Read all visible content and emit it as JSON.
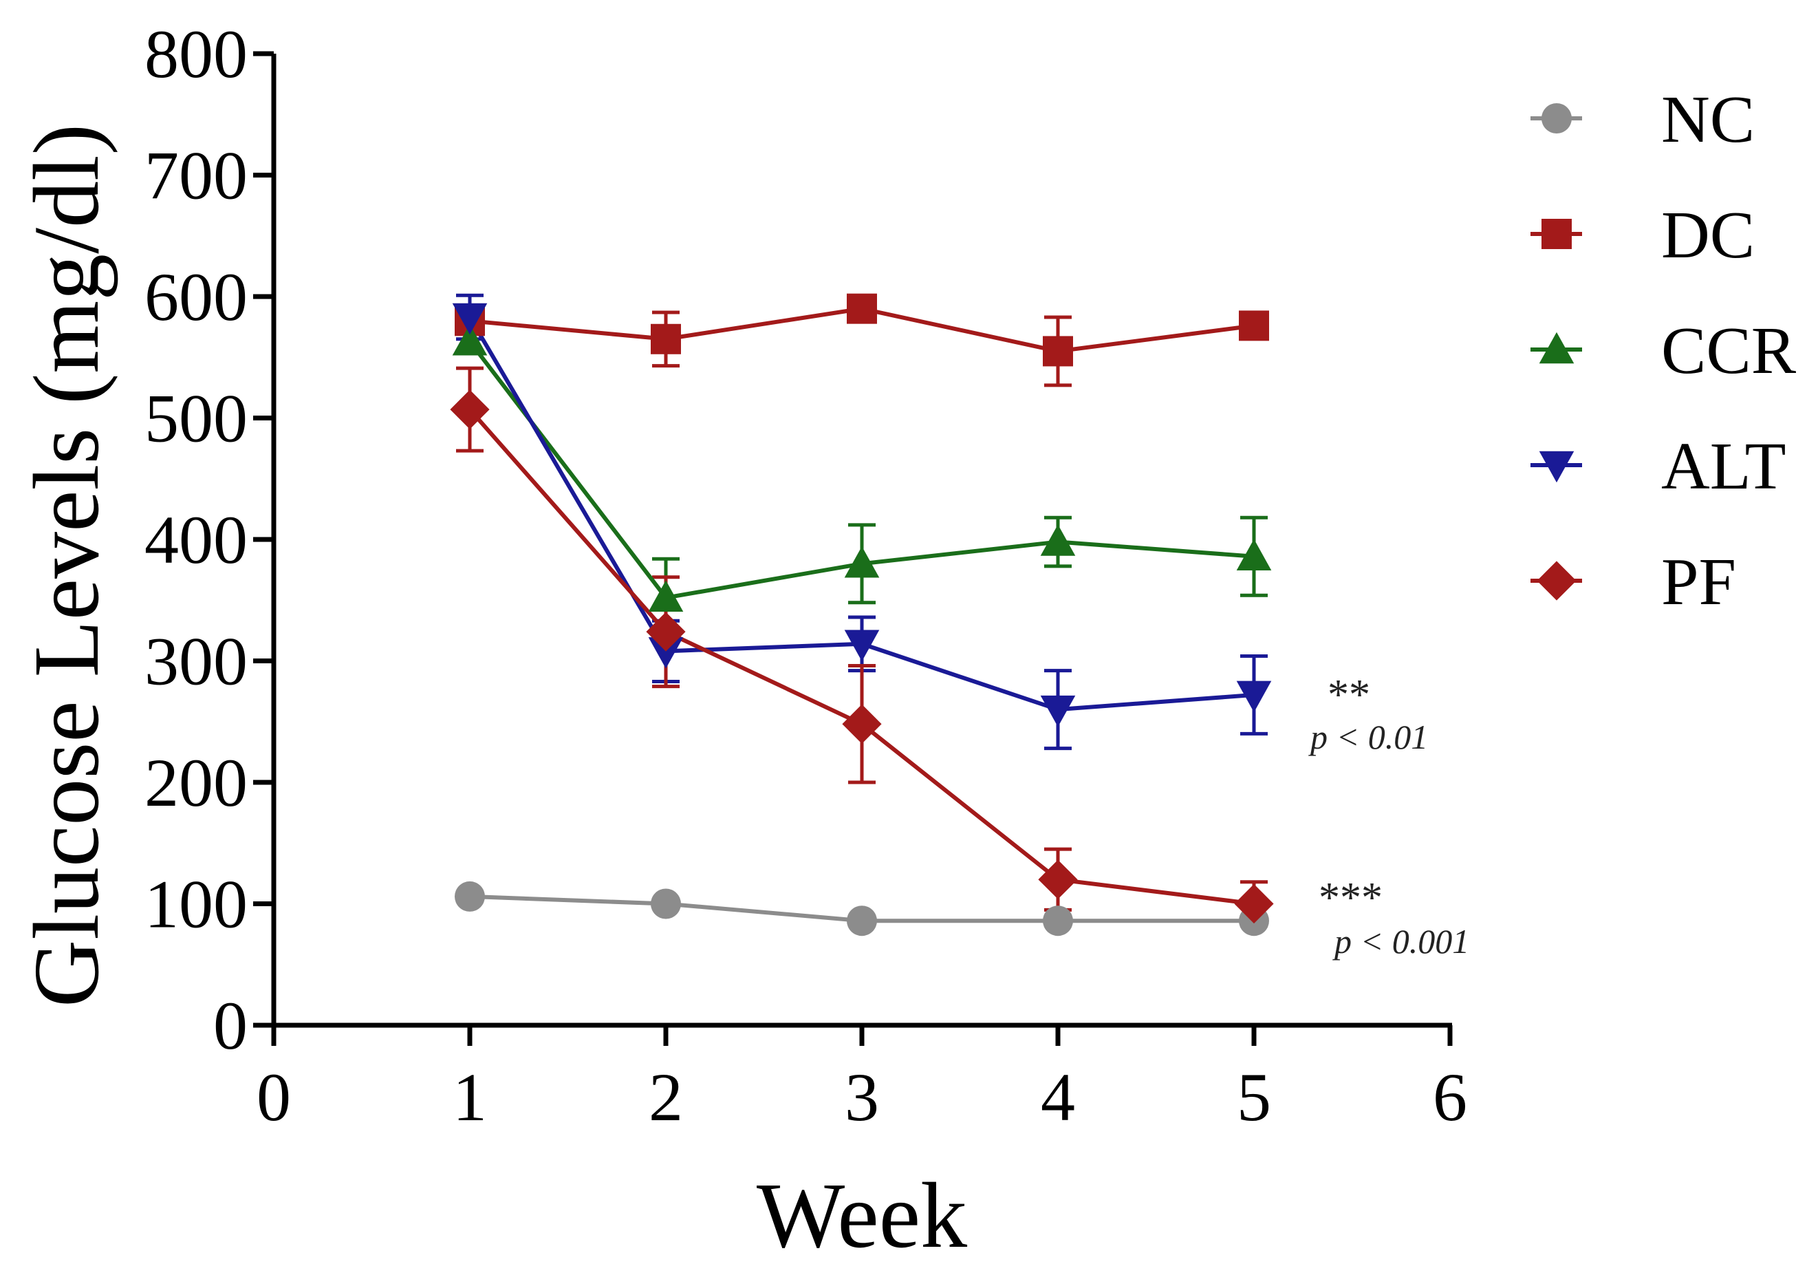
{
  "chart_data": {
    "type": "line",
    "title": "",
    "xlabel": "Week",
    "ylabel": "Glucose Levels (mg/dl)",
    "xlim": [
      0,
      6
    ],
    "ylim": [
      0,
      800
    ],
    "xticks": [
      "0",
      "1",
      "2",
      "3",
      "4",
      "5",
      "6"
    ],
    "yticks": [
      "0",
      "100",
      "200",
      "300",
      "400",
      "500",
      "600",
      "700",
      "800"
    ],
    "grid": false,
    "legend_position": "right",
    "x": [
      1,
      2,
      3,
      4,
      5
    ],
    "series": [
      {
        "name": "NC",
        "color": "#8c8c8c",
        "marker": "circle",
        "values": [
          106,
          100,
          86,
          86,
          86
        ],
        "errors": [
          0,
          0,
          0,
          0,
          0
        ]
      },
      {
        "name": "DC",
        "color": "#a31a1a",
        "marker": "square",
        "values": [
          580,
          565,
          590,
          555,
          576
        ],
        "errors": [
          0,
          22,
          0,
          28,
          0
        ]
      },
      {
        "name": "CCR",
        "color": "#1a6e1a",
        "marker": "triangle-up",
        "values": [
          563,
          352,
          380,
          398,
          386
        ],
        "errors": [
          0,
          32,
          32,
          20,
          32
        ]
      },
      {
        "name": "ALT",
        "color": "#1a1a96",
        "marker": "triangle-down",
        "values": [
          583,
          308,
          314,
          260,
          272
        ],
        "errors": [
          18,
          25,
          22,
          32,
          32
        ]
      },
      {
        "name": "PF",
        "color": "#a31a1a",
        "marker": "diamond",
        "values": [
          507,
          324,
          248,
          120,
          100
        ],
        "errors": [
          34,
          45,
          48,
          25,
          18
        ]
      }
    ],
    "annotations": [
      {
        "stars": "**",
        "text": "p < 0.01",
        "series": "ALT"
      },
      {
        "stars": "***",
        "text": "p < 0.001",
        "series": "PF"
      }
    ]
  }
}
